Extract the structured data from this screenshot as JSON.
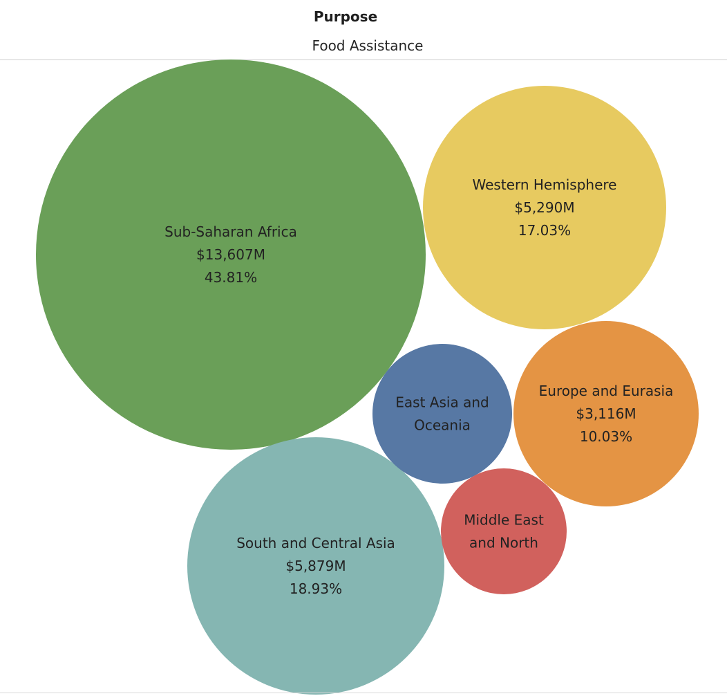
{
  "header": {
    "title": "Purpose",
    "subtitle": "Food Assistance"
  },
  "chart_data": {
    "type": "bubble",
    "title": "Purpose",
    "subtitle": "Food Assistance",
    "bubbles": [
      {
        "label": [
          "Sub-Saharan Africa"
        ],
        "value_text": "$13,607M",
        "pct_text": "43.81%",
        "value": 13607,
        "pct": 43.81,
        "color": "#6a9f58"
      },
      {
        "label": [
          "Western Hemisphere"
        ],
        "value_text": "$5,290M",
        "pct_text": "17.03%",
        "value": 5290,
        "pct": 17.03,
        "color": "#e7ca60"
      },
      {
        "label": [
          "South and Central Asia"
        ],
        "value_text": "$5,879M",
        "pct_text": "18.93%",
        "value": 5879,
        "pct": 18.93,
        "color": "#85b6b2"
      },
      {
        "label": [
          "Europe and Eurasia"
        ],
        "value_text": "$3,116M",
        "pct_text": "10.03%",
        "value": 3116,
        "pct": 10.03,
        "color": "#e49444"
      },
      {
        "label": [
          "East Asia and",
          "Oceania"
        ],
        "value_text": "",
        "pct_text": "",
        "color": "#5778a4"
      },
      {
        "label": [
          "Middle East",
          "and North"
        ],
        "value_text": "",
        "pct_text": "",
        "color": "#d1615d"
      }
    ]
  }
}
